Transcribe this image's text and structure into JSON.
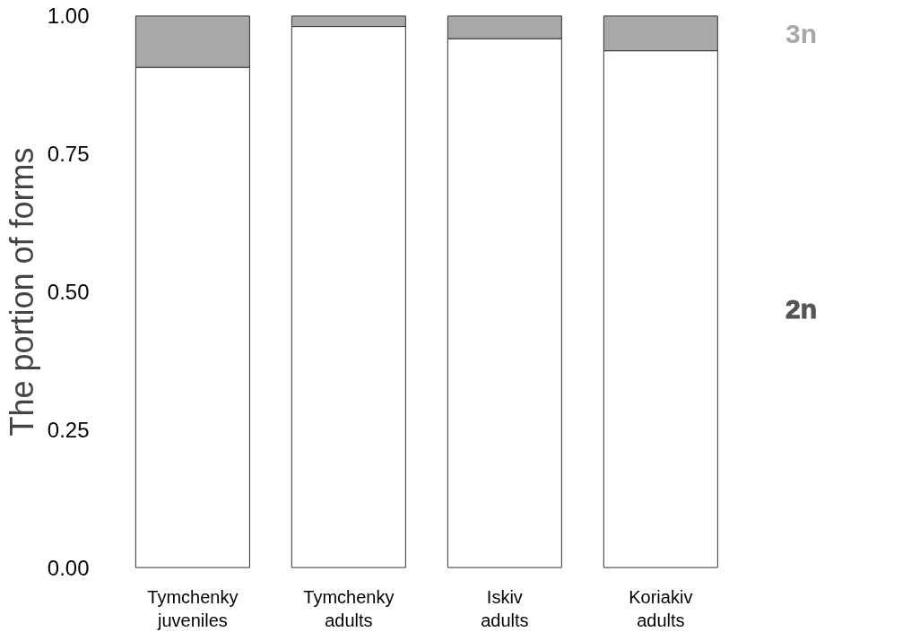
{
  "chart_data": {
    "type": "bar",
    "stacked": true,
    "ylabel": "The portion of forms",
    "categories": [
      "Tymchenky\njuveniles",
      "Tymchenky\nadults",
      "Iskiv\nadults",
      "Koriakiv\nadults"
    ],
    "series": [
      {
        "name": "2n",
        "color": "#ffffff",
        "values": [
          0.907,
          0.981,
          0.959,
          0.937
        ]
      },
      {
        "name": "3n",
        "color": "#a8a8a8",
        "values": [
          0.093,
          0.019,
          0.041,
          0.063
        ]
      }
    ],
    "ylim": [
      0,
      1
    ],
    "yticks": [
      {
        "value": 0,
        "label": "0.00"
      },
      {
        "value": 0.25,
        "label": "0.25"
      },
      {
        "value": 0.5,
        "label": "0.50"
      },
      {
        "value": 0.75,
        "label": "0.75"
      },
      {
        "value": 1,
        "label": "1.00"
      }
    ],
    "grid": false,
    "legend": "right"
  }
}
